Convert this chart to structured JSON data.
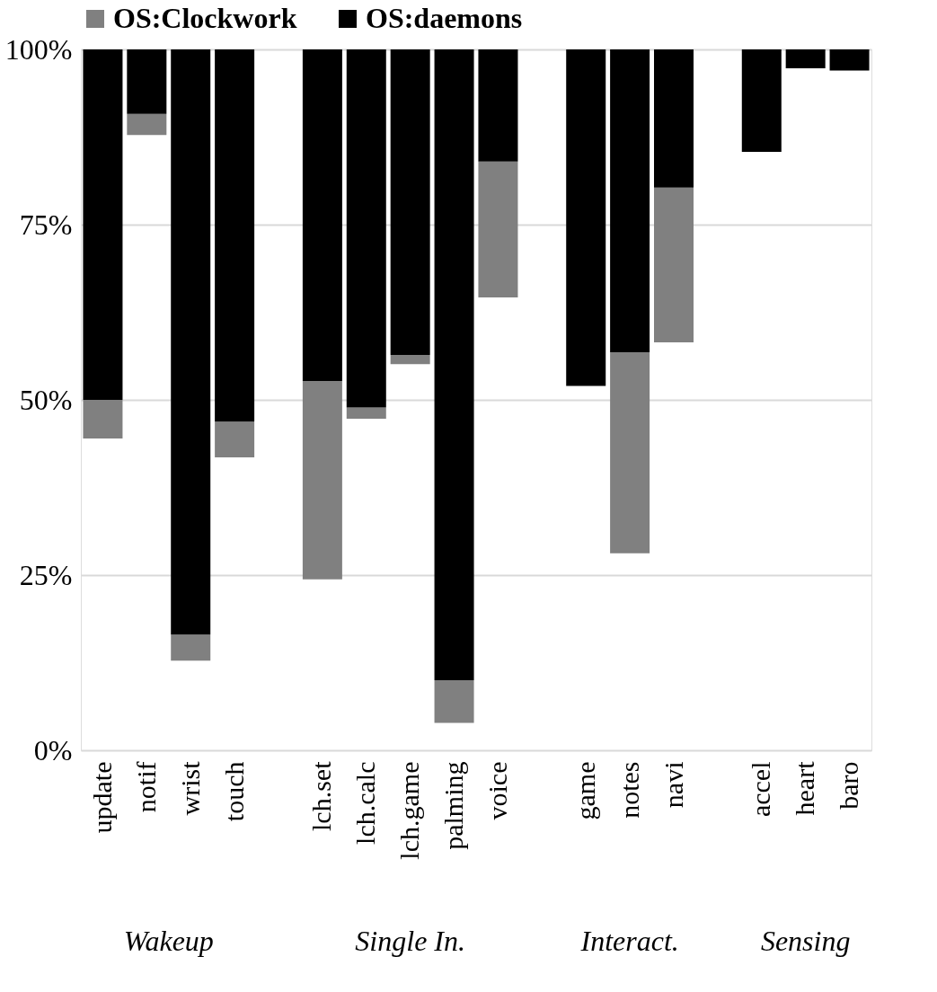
{
  "chart_data": {
    "type": "bar",
    "legend": "top",
    "grid": "y",
    "categories": [
      "update",
      "notif",
      "wrist",
      "touch",
      null,
      "lch.set",
      "lch.calc",
      "lch.game",
      "palming",
      "voice",
      null,
      "game",
      "notes",
      "navi",
      null,
      "accel",
      "heart",
      "baro"
    ],
    "series": [
      {
        "name": "OS:Clockwork",
        "color": "#808080",
        "base": [
          44.5,
          87.8,
          12.8,
          41.8,
          null,
          24.4,
          47.3,
          55.1,
          3.9,
          64.6,
          null,
          null,
          28.1,
          58.2,
          null,
          null,
          null,
          null
        ],
        "values": [
          5.5,
          3.0,
          3.7,
          5.1,
          null,
          28.3,
          1.6,
          1.3,
          6.1,
          19.4,
          null,
          null,
          28.7,
          22.1,
          null,
          null,
          null,
          null
        ]
      },
      {
        "name": "OS:daemons",
        "color": "#000000",
        "base": [
          50.0,
          90.8,
          16.5,
          46.9,
          null,
          52.7,
          48.9,
          56.4,
          10.0,
          84.0,
          null,
          52.0,
          56.8,
          80.3,
          null,
          85.4,
          97.3,
          97.0
        ],
        "values": [
          50.0,
          9.2,
          83.5,
          53.1,
          null,
          47.3,
          51.1,
          43.6,
          90.0,
          16.0,
          null,
          48.0,
          43.2,
          19.7,
          null,
          14.6,
          2.7,
          3.0
        ]
      }
    ],
    "ylim": [
      0,
      100
    ],
    "yticks": [
      {
        "value": 0,
        "label": "0%"
      },
      {
        "value": 25,
        "label": "25%"
      },
      {
        "value": 50,
        "label": "50%"
      },
      {
        "value": 75,
        "label": "75%"
      },
      {
        "value": 100,
        "label": "100%"
      }
    ],
    "annotations": [
      "Wakeup",
      "Single In.",
      "Interact.",
      "Sensing"
    ]
  }
}
